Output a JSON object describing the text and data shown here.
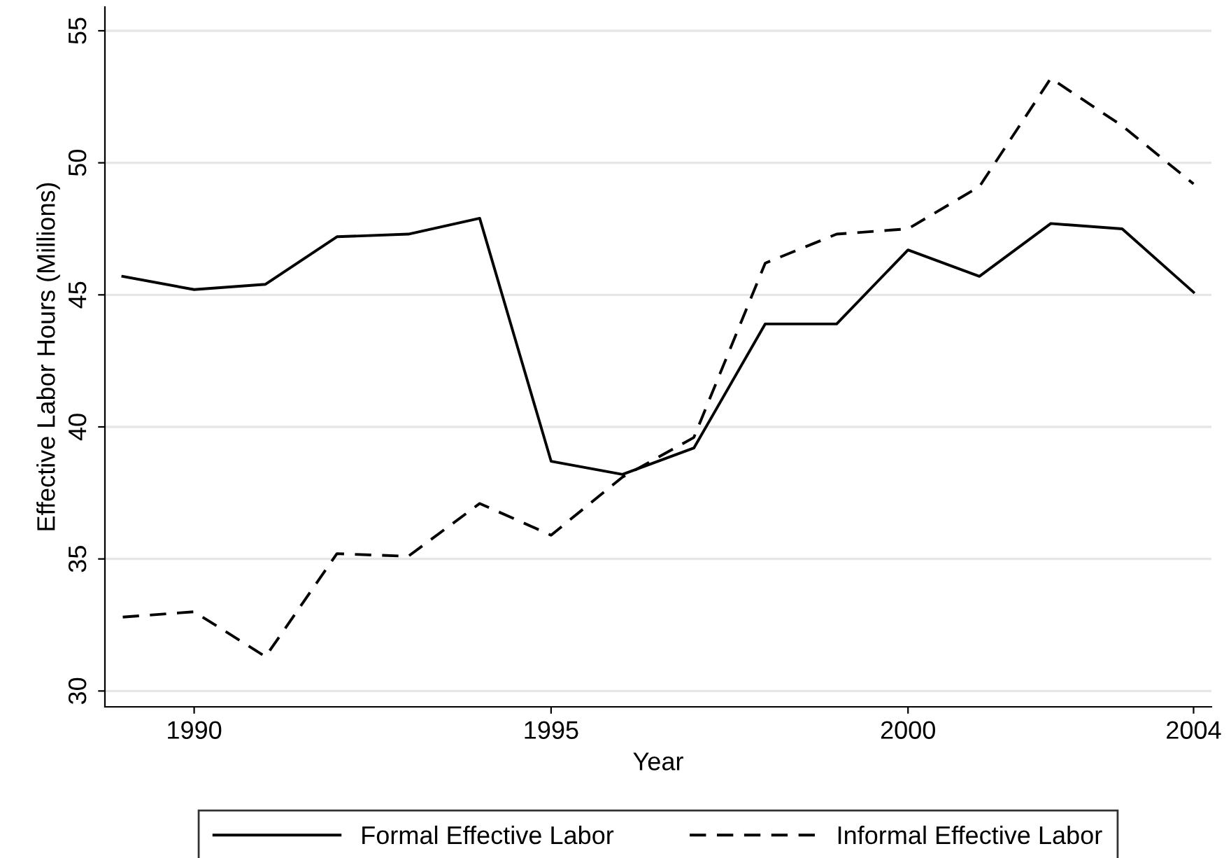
{
  "chart_data": {
    "type": "line",
    "xlabel": "Year",
    "ylabel": "Effective Labor Hours (Millions)",
    "x": [
      1989,
      1990,
      1991,
      1992,
      1993,
      1994,
      1995,
      1996,
      1997,
      1998,
      1999,
      2000,
      2001,
      2002,
      2003,
      2004
    ],
    "series": [
      {
        "name": "Formal Effective Labor",
        "color": "#000000",
        "line_style": "solid",
        "values": [
          45.7,
          45.2,
          45.4,
          47.2,
          47.3,
          47.9,
          38.7,
          38.2,
          39.2,
          43.9,
          43.9,
          46.7,
          45.7,
          47.7,
          47.5,
          45.1
        ]
      },
      {
        "name": "Informal Effective Labor",
        "color": "#000000",
        "line_style": "dashed",
        "values": [
          32.8,
          33.0,
          31.3,
          35.2,
          35.1,
          37.1,
          35.9,
          38.1,
          39.6,
          46.2,
          47.3,
          47.5,
          49.1,
          53.2,
          51.4,
          49.2
        ]
      }
    ],
    "xlim": [
      1988.75,
      2004.25
    ],
    "xticks": [
      1990,
      1995,
      2000,
      2004
    ],
    "ylim": [
      29.4,
      55.9
    ],
    "yticks": [
      30,
      35,
      40,
      45,
      50,
      55
    ],
    "grid": "y",
    "legend": "bottom",
    "marker": "none"
  }
}
